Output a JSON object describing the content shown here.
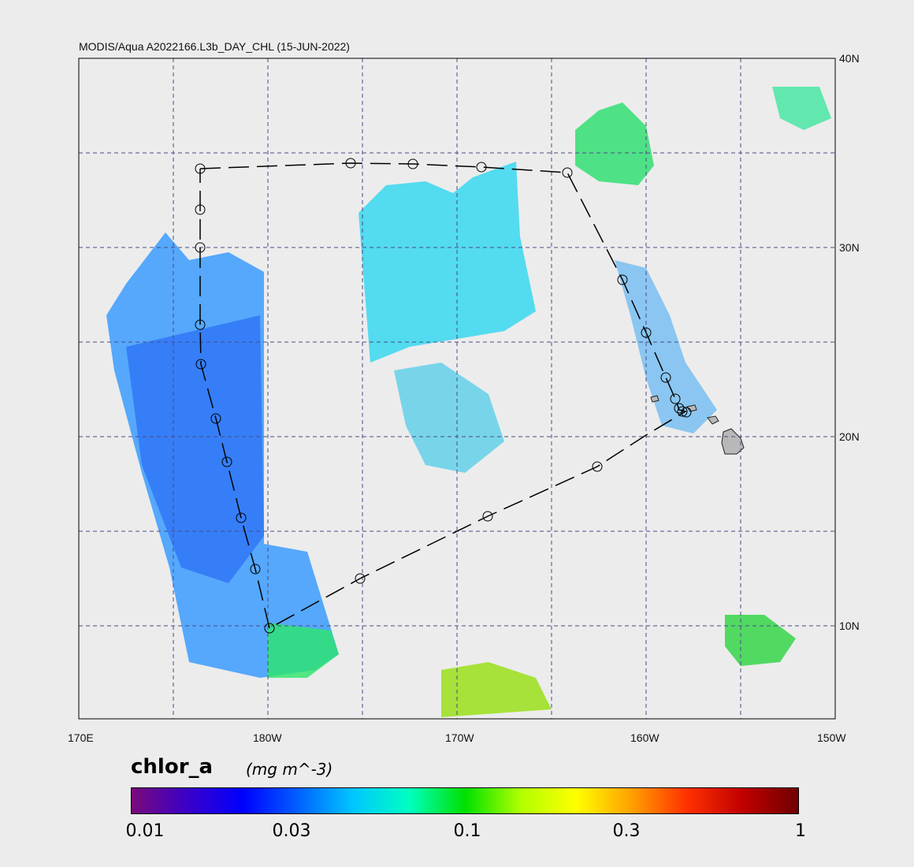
{
  "title": "MODIS/Aqua A2022166.L3b_DAY_CHL (15-JUN-2022)",
  "map": {
    "lon_labels": [
      "170E",
      "180W",
      "170W",
      "160W",
      "150W"
    ],
    "lat_labels": [
      "40N",
      "30N",
      "20N",
      "10N"
    ],
    "background_color": "#ececec",
    "grid_color": "#4a4a8a",
    "land_color": "#b8b8b8"
  },
  "colorbar": {
    "variable": "chlor_a",
    "units": "(mg m^-3)",
    "tick_labels": [
      "0.01",
      "0.03",
      "0.1",
      "0.3",
      "1"
    ],
    "colors": [
      "#7a0a7a",
      "#3a00c8",
      "#0000ff",
      "#0060ff",
      "#00c8ff",
      "#00ffc0",
      "#00e000",
      "#b0ff00",
      "#ffff00",
      "#ffa000",
      "#ff3000",
      "#c00000",
      "#700000"
    ]
  }
}
